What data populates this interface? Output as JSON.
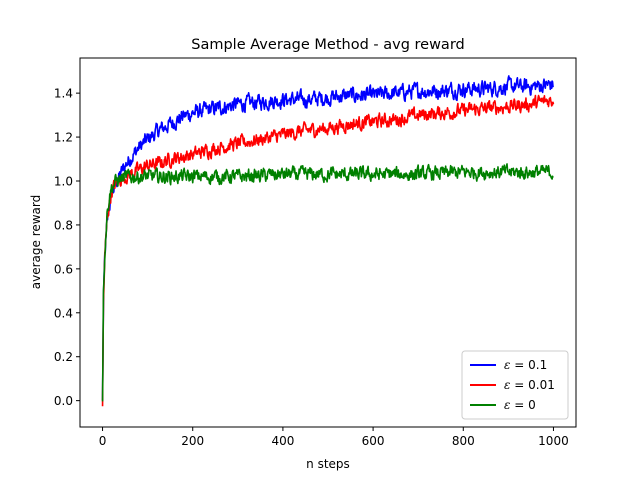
{
  "chart_data": {
    "type": "line",
    "title": "Sample Average Method - avg reward",
    "xlabel": "n steps",
    "ylabel": "average reward",
    "xlim": [
      -50,
      1050
    ],
    "ylim": [
      -0.12,
      1.56
    ],
    "xticks": [
      0,
      200,
      400,
      600,
      800,
      1000
    ],
    "yticks": [
      0.0,
      0.2,
      0.4,
      0.6,
      0.8,
      1.0,
      1.2,
      1.4
    ],
    "grid": false,
    "legend_position": "lower-right",
    "series": [
      {
        "name_prefix": "ε",
        "name_value": "= 0.1",
        "color": "#0000ff",
        "x": [
          0,
          2,
          5,
          10,
          15,
          20,
          30,
          40,
          50,
          60,
          80,
          100,
          125,
          150,
          175,
          200,
          250,
          300,
          350,
          400,
          450,
          500,
          550,
          600,
          650,
          700,
          750,
          800,
          850,
          900,
          950,
          1000
        ],
        "y": [
          0.0,
          0.45,
          0.65,
          0.8,
          0.88,
          0.94,
          0.99,
          1.03,
          1.07,
          1.1,
          1.15,
          1.19,
          1.23,
          1.26,
          1.29,
          1.31,
          1.33,
          1.35,
          1.36,
          1.37,
          1.37,
          1.38,
          1.39,
          1.39,
          1.4,
          1.41,
          1.41,
          1.42,
          1.42,
          1.43,
          1.43,
          1.44
        ],
        "noise": 0.028
      },
      {
        "name_prefix": "ε",
        "name_value": "= 0.01",
        "color": "#ff0000",
        "x": [
          0,
          2,
          5,
          10,
          15,
          20,
          30,
          40,
          50,
          60,
          80,
          100,
          125,
          150,
          200,
          250,
          300,
          350,
          400,
          450,
          500,
          550,
          600,
          650,
          700,
          750,
          800,
          850,
          900,
          950,
          1000
        ],
        "y": [
          -0.03,
          0.45,
          0.65,
          0.82,
          0.9,
          0.95,
          0.99,
          1.01,
          1.02,
          1.03,
          1.05,
          1.07,
          1.08,
          1.1,
          1.12,
          1.15,
          1.17,
          1.19,
          1.21,
          1.23,
          1.24,
          1.26,
          1.27,
          1.28,
          1.3,
          1.31,
          1.32,
          1.33,
          1.34,
          1.35,
          1.37
        ],
        "noise": 0.025
      },
      {
        "name_prefix": "ε",
        "name_value": "= 0",
        "color": "#008000",
        "x": [
          0,
          2,
          5,
          10,
          15,
          20,
          30,
          40,
          60,
          100,
          200,
          300,
          400,
          500,
          600,
          700,
          800,
          900,
          1000
        ],
        "y": [
          0.0,
          0.5,
          0.68,
          0.85,
          0.93,
          0.97,
          1.0,
          1.01,
          1.02,
          1.02,
          1.02,
          1.02,
          1.03,
          1.03,
          1.03,
          1.03,
          1.04,
          1.04,
          1.04
        ],
        "noise": 0.025
      }
    ]
  }
}
